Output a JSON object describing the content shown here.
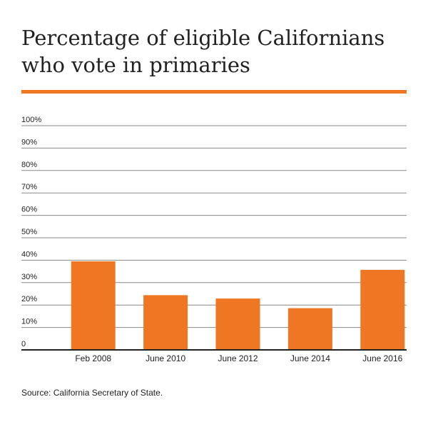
{
  "title": {
    "line1": "Percentage of eligible Californians",
    "line2": "who vote in primaries"
  },
  "source": "Source: California Secretary of State.",
  "colors": {
    "accent": "#ef7622",
    "bar": "#ef7622",
    "text": "#222222",
    "grid": "#888888"
  },
  "chart_data": {
    "type": "bar",
    "title": "Percentage of eligible Californians who vote in primaries",
    "categories": [
      "Feb 2008",
      "June 2010",
      "June 2012",
      "June 2014",
      "June 2016"
    ],
    "values": [
      39.5,
      24.4,
      22.9,
      18.6,
      35.7
    ],
    "yticks": [
      "0",
      "10%",
      "20%",
      "30%",
      "40%",
      "50%",
      "60%",
      "70%",
      "80%",
      "90%",
      "100%"
    ],
    "ylim": [
      0,
      100
    ],
    "xlabel": "",
    "ylabel": "",
    "grid": true
  }
}
